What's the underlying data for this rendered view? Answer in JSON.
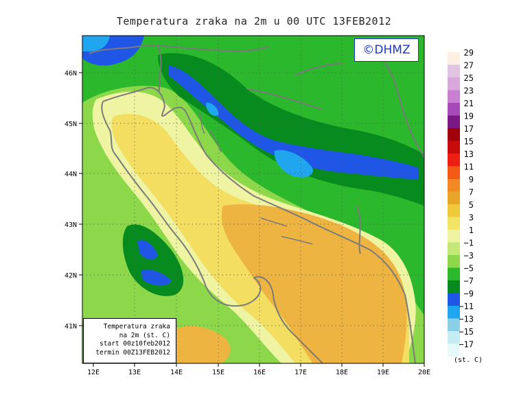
{
  "title": "Temperatura zraka na 2m u 00 UTC 13FEB2012",
  "credit": "©DHMZ",
  "info_box": {
    "line1": "Temperatura zraka",
    "line2": "na 2m (st. C)",
    "line3": "start 00z10feb2012",
    "line4": "termin 00Z13FEB2012"
  },
  "axes": {
    "lon_ticks": [
      "12E",
      "13E",
      "14E",
      "15E",
      "16E",
      "17E",
      "18E",
      "19E",
      "20E"
    ],
    "lat_ticks": [
      "46N",
      "45N",
      "44N",
      "43N",
      "42N",
      "41N"
    ]
  },
  "legend": {
    "unit": "(st. C)",
    "labels": [
      "29",
      "27",
      "25",
      "23",
      "21",
      "19",
      "17",
      "15",
      "13",
      "11",
      "9",
      "7",
      "5",
      "3",
      "1",
      "−1",
      "−3",
      "−5",
      "−7",
      "−9",
      "−11",
      "−13",
      "−15",
      "−17"
    ],
    "colors": [
      "#fdf0e2",
      "#e0c4e2",
      "#d8a8dc",
      "#c97fd2",
      "#a64bb8",
      "#7a1884",
      "#a0000a",
      "#c80a0a",
      "#ee1e14",
      "#f55a14",
      "#f18a24",
      "#e8a628",
      "#efc93a",
      "#f2e566",
      "#eef4a2",
      "#c2e877",
      "#8cd84a",
      "#2cb82c",
      "#078a1e",
      "#1f56e6",
      "#1fa6ee",
      "#8acfe6",
      "#c6ecf4",
      "#e6fafc"
    ]
  },
  "colors": {
    "sea_warm": "#eeb442",
    "sea_mid": "#f3de62",
    "sea_cool": "#f6f19c",
    "land_green": "#2cb82c",
    "land_dark": "#078a1e",
    "mountain_blue": "#1f56e6",
    "coast_line": "#808080"
  }
}
